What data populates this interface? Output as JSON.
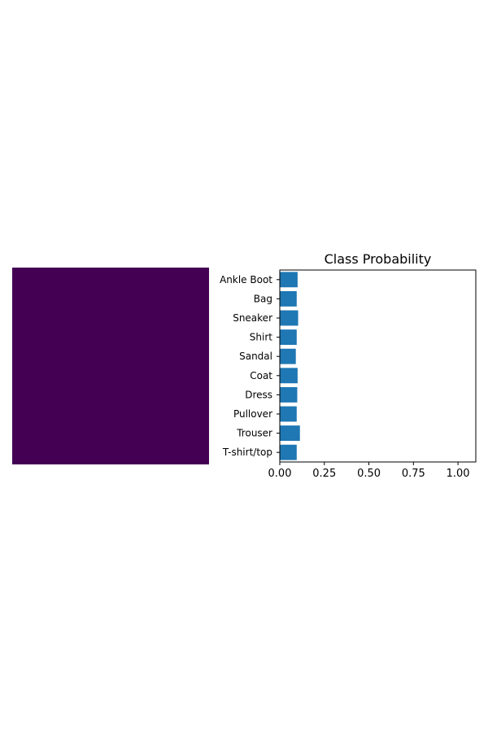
{
  "image_panel": {
    "fill_color": "#440154"
  },
  "chart_data": {
    "type": "bar",
    "orientation": "horizontal",
    "title": "Class Probability",
    "categories": [
      "T-shirt/top",
      "Trouser",
      "Pullover",
      "Dress",
      "Coat",
      "Sandal",
      "Shirt",
      "Sneaker",
      "Bag",
      "Ankle Boot"
    ],
    "values": [
      0.095,
      0.113,
      0.095,
      0.098,
      0.1,
      0.09,
      0.095,
      0.103,
      0.095,
      0.1
    ],
    "xlim": [
      0,
      1.1
    ],
    "xticks": [
      0,
      0.25,
      0.5,
      0.75,
      1.0
    ],
    "xtick_labels": [
      "0.00",
      "0.25",
      "0.50",
      "0.75",
      "1.00"
    ],
    "bar_color": "#1f77b4",
    "grid": false,
    "xlabel": "",
    "ylabel": ""
  }
}
